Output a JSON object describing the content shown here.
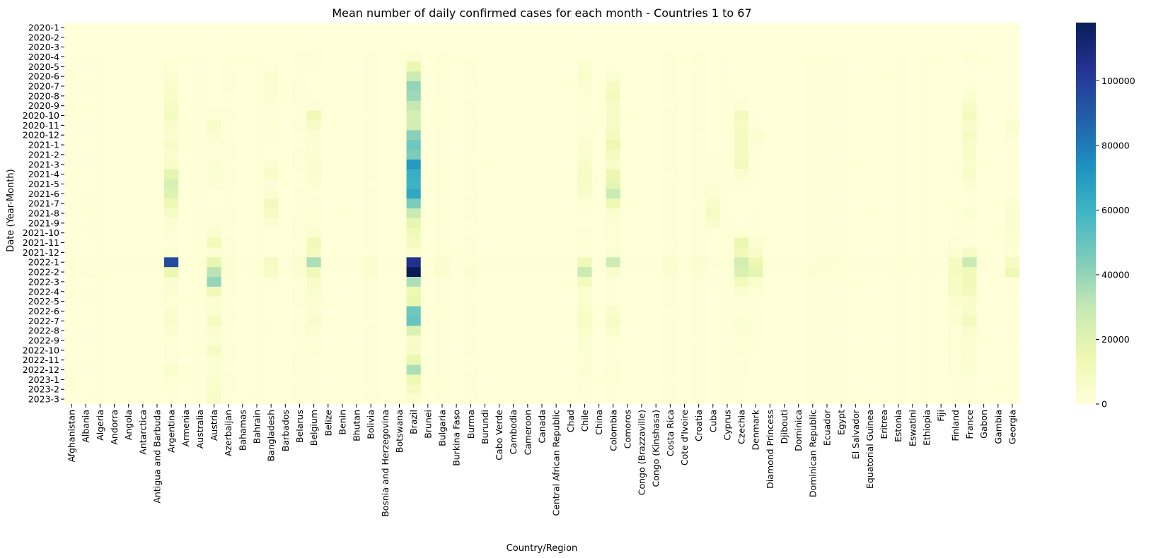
{
  "chart_data": {
    "type": "heatmap",
    "title": "Mean number of daily confirmed cases for each month - Countries 1 to 67",
    "xlabel": "Country/Region",
    "ylabel": "Date (Year-Month)",
    "colormap": "YlGnBu",
    "colorbar": {
      "min": 0,
      "max": 118000,
      "ticks": [
        0,
        20000,
        40000,
        60000,
        80000,
        100000
      ]
    },
    "x": [
      "Afghanistan",
      "Albania",
      "Algeria",
      "Andorra",
      "Angola",
      "Antarctica",
      "Antigua and Barbuda",
      "Argentina",
      "Armenia",
      "Australia",
      "Austria",
      "Azerbaijan",
      "Bahamas",
      "Bahrain",
      "Bangladesh",
      "Barbados",
      "Belarus",
      "Belgium",
      "Belize",
      "Benin",
      "Bhutan",
      "Bolivia",
      "Bosnia and Herzegovina",
      "Botswana",
      "Brazil",
      "Brunei",
      "Bulgaria",
      "Burkina Faso",
      "Burma",
      "Burundi",
      "Cabo Verde",
      "Cambodia",
      "Cameroon",
      "Canada",
      "Central African Republic",
      "Chad",
      "Chile",
      "China",
      "Colombia",
      "Comoros",
      "Congo (Brazzaville)",
      "Congo (Kinshasa)",
      "Costa Rica",
      "Cote d'Ivoire",
      "Croatia",
      "Cuba",
      "Cyprus",
      "Czechia",
      "Denmark",
      "Diamond Princess",
      "Djibouti",
      "Dominica",
      "Dominican Republic",
      "Ecuador",
      "Egypt",
      "El Salvador",
      "Equatorial Guinea",
      "Eritrea",
      "Estonia",
      "Eswatini",
      "Ethiopia",
      "Fiji",
      "Finland",
      "France",
      "Gabon",
      "Gambia",
      "Georgia"
    ],
    "y": [
      "2020-1",
      "2020-2",
      "2020-3",
      "2020-4",
      "2020-5",
      "2020-6",
      "2020-7",
      "2020-8",
      "2020-9",
      "2020-10",
      "2020-11",
      "2020-12",
      "2021-1",
      "2021-2",
      "2021-3",
      "2021-4",
      "2021-5",
      "2021-6",
      "2021-7",
      "2021-8",
      "2021-9",
      "2021-10",
      "2021-11",
      "2021-12",
      "2022-1",
      "2022-2",
      "2022-3",
      "2022-4",
      "2022-5",
      "2022-6",
      "2022-7",
      "2022-8",
      "2022-9",
      "2022-10",
      "2022-11",
      "2022-12",
      "2023-1",
      "2023-2",
      "2023-3"
    ],
    "highlights": {
      "Argentina": [
        0,
        0,
        0,
        200,
        2000,
        3000,
        5000,
        6000,
        7000,
        9000,
        5000,
        4000,
        6000,
        4000,
        6000,
        18000,
        23000,
        20000,
        13000,
        7000,
        3000,
        1500,
        1000,
        3000,
        95000,
        15000,
        4000,
        3000,
        2000,
        4000,
        5000,
        4000,
        2000,
        1500,
        1500,
        5000,
        2000,
        1000,
        500
      ],
      "Brazil": [
        0,
        0,
        200,
        3000,
        15000,
        27000,
        40000,
        38000,
        30000,
        24000,
        25000,
        42000,
        48000,
        45000,
        70000,
        62000,
        60000,
        65000,
        45000,
        28000,
        17000,
        12000,
        9000,
        5000,
        105000,
        118000,
        35000,
        14000,
        16000,
        48000,
        50000,
        22000,
        6000,
        7000,
        16000,
        35000,
        14000,
        8000,
        4000
      ],
      "Colombia": [
        0,
        0,
        0,
        100,
        1000,
        3000,
        8000,
        10000,
        7000,
        7000,
        7000,
        9000,
        14000,
        9000,
        6000,
        15000,
        18000,
        28000,
        14000,
        4000,
        2000,
        2000,
        2000,
        3000,
        27000,
        5000,
        1000,
        500,
        1000,
        5000,
        7000,
        5000,
        2000,
        1000,
        1000,
        2000,
        2000,
        500,
        500
      ],
      "Chile": [
        0,
        0,
        200,
        500,
        4000,
        5000,
        2500,
        2000,
        1500,
        1200,
        1300,
        2000,
        3500,
        4000,
        6000,
        7000,
        6500,
        5500,
        2000,
        500,
        400,
        1500,
        2000,
        1500,
        12000,
        28000,
        10000,
        4000,
        4000,
        6000,
        6500,
        5000,
        3000,
        3000,
        2000,
        2500,
        1500,
        1000,
        500
      ],
      "Czechia": [
        0,
        0,
        100,
        300,
        100,
        100,
        100,
        500,
        2000,
        10000,
        8000,
        9000,
        9000,
        9000,
        10000,
        4000,
        1000,
        200,
        200,
        300,
        500,
        2000,
        16000,
        12000,
        25000,
        22000,
        10000,
        4000,
        800,
        800,
        3000,
        2500,
        1500,
        2000,
        1000,
        1500,
        1000,
        800,
        800
      ],
      "Belgium": [
        0,
        0,
        1000,
        1200,
        500,
        100,
        300,
        600,
        1200,
        12000,
        7000,
        2500,
        2000,
        2500,
        4000,
        4000,
        3000,
        1000,
        1500,
        2000,
        2000,
        4000,
        12000,
        9000,
        35000,
        12000,
        6000,
        5000,
        2500,
        3000,
        5000,
        3000,
        1500,
        2000,
        1000,
        1000,
        1000,
        500,
        500
      ],
      "Austria": [
        0,
        0,
        300,
        300,
        50,
        50,
        100,
        200,
        500,
        2000,
        6000,
        3000,
        1500,
        1500,
        2500,
        3000,
        1500,
        200,
        200,
        600,
        1500,
        4000,
        11000,
        3000,
        17000,
        32000,
        40000,
        12000,
        3000,
        4000,
        9000,
        4000,
        3000,
        8000,
        3000,
        3000,
        4000,
        5000,
        6000
      ],
      "France": [
        0,
        0,
        1000,
        2000,
        500,
        400,
        600,
        3000,
        7000,
        10000,
        5000,
        8000,
        6000,
        6000,
        5000,
        6000,
        3000,
        1000,
        1000,
        3000,
        1000,
        500,
        500,
        7000,
        28000,
        12000,
        12000,
        10000,
        5000,
        6000,
        10000,
        5000,
        3000,
        3000,
        2500,
        3000,
        1000,
        1000,
        1000
      ],
      "Finland": [
        0,
        0,
        50,
        100,
        50,
        20,
        10,
        20,
        50,
        200,
        300,
        300,
        300,
        400,
        600,
        500,
        300,
        100,
        300,
        600,
        600,
        600,
        1500,
        3000,
        8000,
        9000,
        7000,
        7000,
        4000,
        3000,
        3000,
        2000,
        2000,
        2000,
        1500,
        2000,
        1000,
        800,
        500
      ],
      "Denmark": [
        0,
        0,
        50,
        200,
        100,
        50,
        50,
        100,
        300,
        500,
        1000,
        3000,
        1500,
        500,
        600,
        800,
        800,
        300,
        400,
        800,
        500,
        1000,
        3000,
        6000,
        14000,
        18000,
        5000,
        2000,
        500,
        600,
        1500,
        1200,
        800,
        500,
        300,
        300,
        200,
        200,
        100
      ],
      "Bangladesh": [
        0,
        0,
        0,
        200,
        1000,
        3500,
        3000,
        2500,
        1500,
        1300,
        2000,
        1500,
        500,
        400,
        3000,
        6000,
        1500,
        3000,
        10000,
        8000,
        2500,
        400,
        300,
        200,
        8000,
        7000,
        1500,
        100,
        50,
        100,
        1000,
        600,
        300,
        400,
        200,
        100,
        50,
        30,
        30
      ],
      "Cuba": [
        0,
        0,
        0,
        50,
        30,
        10,
        10,
        30,
        50,
        50,
        50,
        50,
        300,
        800,
        800,
        1000,
        1200,
        2500,
        6000,
        8000,
        5000,
        1000,
        100,
        50,
        1500,
        1000,
        500,
        200,
        50,
        50,
        50,
        30,
        20,
        20,
        10,
        10,
        10,
        10,
        10
      ],
      "Georgia": [
        0,
        0,
        0,
        20,
        10,
        5,
        5,
        5,
        100,
        1500,
        4000,
        3000,
        1000,
        500,
        500,
        1000,
        1000,
        500,
        3000,
        4000,
        4000,
        4000,
        3000,
        2000,
        8000,
        13000,
        1000,
        500,
        200,
        400,
        1000,
        1000,
        500,
        300,
        200,
        200,
        300,
        200,
        100
      ]
    },
    "base": {
      "Afghanistan": 700,
      "Albania": 500,
      "Algeria": 700,
      "Australia": 800,
      "Azerbaijan": 1200,
      "Bahrain": 900,
      "Belarus": 1200,
      "Bolivia": 1500,
      "Bulgaria": 1800,
      "Burma": 1200,
      "Costa Rica": 1500,
      "Croatia": 1500,
      "Cyprus": 800,
      "Dominican Republic": 1000,
      "Ecuador": 1000,
      "Egypt": 700,
      "Estonia": 700,
      "Ethiopia": 700
    }
  }
}
